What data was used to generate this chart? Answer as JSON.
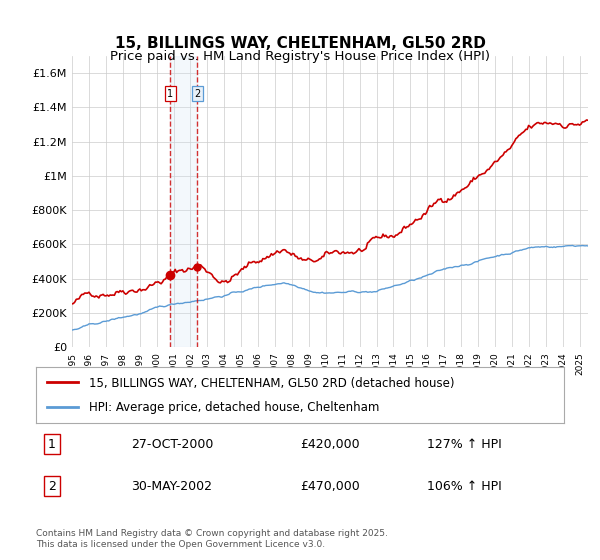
{
  "title": "15, BILLINGS WAY, CHELTENHAM, GL50 2RD",
  "subtitle": "Price paid vs. HM Land Registry's House Price Index (HPI)",
  "title_fontsize": 11,
  "subtitle_fontsize": 9.5,
  "background_color": "#ffffff",
  "plot_bg_color": "#ffffff",
  "grid_color": "#cccccc",
  "red_line_color": "#cc0000",
  "blue_line_color": "#5b9bd5",
  "vline1_color": "#cc0000",
  "vline2_color": "#cc0000",
  "shade_color": "#d0e4f5",
  "ylim": [
    0,
    1700000
  ],
  "yticks": [
    0,
    200000,
    400000,
    600000,
    800000,
    1000000,
    1200000,
    1400000,
    1600000
  ],
  "ytick_labels": [
    "£0",
    "£200K",
    "£400K",
    "£600K",
    "£800K",
    "£1M",
    "£1.2M",
    "£1.4M",
    "£1.6M"
  ],
  "transaction1_date": "27-OCT-2000",
  "transaction1_price": 420000,
  "transaction1_hpi": "127%",
  "transaction2_date": "30-MAY-2002",
  "transaction2_price": 470000,
  "transaction2_hpi": "106%",
  "legend_label_red": "15, BILLINGS WAY, CHELTENHAM, GL50 2RD (detached house)",
  "legend_label_blue": "HPI: Average price, detached house, Cheltenham",
  "footer": "Contains HM Land Registry data © Crown copyright and database right 2025.\nThis data is licensed under the Open Government Licence v3.0.",
  "vline1_x": 2000.82,
  "vline2_x": 2002.41,
  "marker1_x": 2000.82,
  "marker1_y": 420000,
  "marker2_x": 2002.41,
  "marker2_y": 470000,
  "xlim_start": 1995,
  "xlim_end": 2025.5
}
